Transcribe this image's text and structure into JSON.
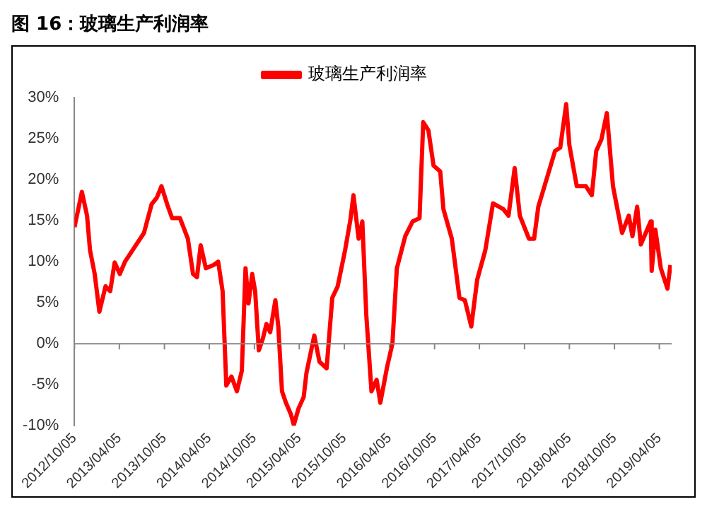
{
  "chart_data": {
    "type": "line",
    "title": "图 16：玻璃生产利润率",
    "x": [
      "2012-10-05",
      "2012-11-04",
      "2012-11-25",
      "2012-12-07",
      "2012-12-26",
      "2013-01-14",
      "2013-02-08",
      "2013-02-27",
      "2013-03-17",
      "2013-04-07",
      "2013-04-28",
      "2013-06-11",
      "2013-07-14",
      "2013-08-14",
      "2013-09-04",
      "2013-09-23",
      "2013-10-16",
      "2013-11-05",
      "2013-12-07",
      "2014-01-08",
      "2014-01-29",
      "2014-02-14",
      "2014-03-01",
      "2014-03-22",
      "2014-04-23",
      "2014-05-11",
      "2014-05-29",
      "2014-06-13",
      "2014-07-04",
      "2014-07-26",
      "2014-08-15",
      "2014-08-30",
      "2014-09-11",
      "2014-09-26",
      "2014-10-08",
      "2014-10-23",
      "2014-11-08",
      "2014-11-23",
      "2014-12-08",
      "2014-12-29",
      "2015-01-10",
      "2015-01-25",
      "2015-02-10",
      "2015-03-02",
      "2015-03-14",
      "2015-04-02",
      "2015-04-23",
      "2015-05-04",
      "2015-06-05",
      "2015-06-26",
      "2015-07-25",
      "2015-08-17",
      "2015-09-08",
      "2015-10-08",
      "2015-10-29",
      "2015-11-11",
      "2015-12-02",
      "2015-12-17",
      "2016-01-02",
      "2016-01-23",
      "2016-02-13",
      "2016-02-28",
      "2016-03-26",
      "2016-04-17",
      "2016-05-05",
      "2016-06-08",
      "2016-07-08",
      "2016-08-05",
      "2016-08-20",
      "2016-09-10",
      "2016-10-01",
      "2016-10-28",
      "2016-11-10",
      "2016-12-14",
      "2017-01-14",
      "2017-02-05",
      "2017-03-03",
      "2017-03-27",
      "2017-04-29",
      "2017-05-30",
      "2017-07-11",
      "2017-08-01",
      "2017-08-26",
      "2017-09-16",
      "2017-10-23",
      "2017-11-13",
      "2017-11-30",
      "2018-01-05",
      "2018-02-06",
      "2018-02-27",
      "2018-03-23",
      "2018-04-05",
      "2018-05-05",
      "2018-06-11",
      "2018-07-05",
      "2018-07-23",
      "2018-08-13",
      "2018-09-04",
      "2018-09-29",
      "2018-10-17",
      "2018-11-05",
      "2018-12-02",
      "2018-12-17",
      "2019-01-05",
      "2019-01-20",
      "2019-03-01",
      "2019-03-05",
      "2019-03-20",
      "2019-04-11",
      "2019-05-08",
      "2019-05-20"
    ],
    "series": [
      {
        "name": "玻璃生产利润率",
        "color": "#ff0000",
        "values": [
          14.2,
          18.5,
          15.6,
          11.4,
          8.5,
          3.9,
          7,
          6.4,
          9.9,
          8.5,
          10,
          12,
          13.5,
          17,
          17.8,
          19.2,
          17,
          15.3,
          15.3,
          12.8,
          8.5,
          8.1,
          12,
          9.2,
          9.6,
          10,
          6.4,
          -5.1,
          -4,
          -5.8,
          -3.3,
          9.2,
          4.9,
          8.5,
          6.4,
          -0.8,
          0.6,
          2.4,
          1.4,
          5.3,
          2.1,
          -5.8,
          -7.2,
          -8.6,
          -9.9,
          -7.9,
          -6.5,
          -3.6,
          1,
          -2.2,
          -3,
          5.6,
          7,
          11.4,
          15,
          18.1,
          12.8,
          14.9,
          3.5,
          -5.8,
          -4.4,
          -7.2,
          -2.9,
          0,
          9.2,
          13.1,
          14.9,
          15.3,
          27,
          26,
          21.7,
          21,
          16.4,
          12.8,
          5.6,
          5.3,
          2.1,
          7.8,
          11.4,
          17.1,
          16.4,
          15.6,
          21.4,
          15.6,
          12.8,
          12.8,
          16.7,
          20.3,
          23.5,
          23.9,
          29.2,
          24.2,
          19.2,
          19.2,
          18.1,
          23.5,
          24.9,
          28.1,
          19.2,
          16.4,
          13.5,
          15.6,
          13.1,
          16.7,
          12.1,
          14.9,
          8.9,
          13.9,
          9.2,
          6.7,
          9.6
        ]
      }
    ],
    "xlim": [
      "2012-10-05",
      "2019-05-25"
    ],
    "xticks": [
      {
        "value": "2012-10-05",
        "label": "2012/10/05"
      },
      {
        "value": "2013-04-05",
        "label": "2013/04/05"
      },
      {
        "value": "2013-10-05",
        "label": "2013/10/05"
      },
      {
        "value": "2014-04-05",
        "label": "2014/04/05"
      },
      {
        "value": "2014-10-05",
        "label": "2014/10/05"
      },
      {
        "value": "2015-04-05",
        "label": "2015/04/05"
      },
      {
        "value": "2015-10-05",
        "label": "2015/10/05"
      },
      {
        "value": "2016-04-05",
        "label": "2016/04/05"
      },
      {
        "value": "2016-10-05",
        "label": "2016/10/05"
      },
      {
        "value": "2017-04-05",
        "label": "2017/04/05"
      },
      {
        "value": "2017-10-05",
        "label": "2017/10/05"
      },
      {
        "value": "2018-04-05",
        "label": "2018/04/05"
      },
      {
        "value": "2018-10-05",
        "label": "2018/10/05"
      },
      {
        "value": "2019-04-05",
        "label": "2019/04/05"
      }
    ],
    "ylim": [
      -10,
      30
    ],
    "yticks": [
      {
        "value": -10,
        "label": "-10%"
      },
      {
        "value": -5,
        "label": "-5%"
      },
      {
        "value": 0,
        "label": "0%"
      },
      {
        "value": 5,
        "label": "5%"
      },
      {
        "value": 10,
        "label": "10%"
      },
      {
        "value": 15,
        "label": "15%"
      },
      {
        "value": 20,
        "label": "20%"
      },
      {
        "value": 25,
        "label": "25%"
      },
      {
        "value": 30,
        "label": "30%"
      }
    ],
    "ref_lines": [
      {
        "axis": "y",
        "value": 0,
        "color": "#888888"
      }
    ],
    "grid": false,
    "legend": "top",
    "marker": "none",
    "line_style": "solid"
  }
}
